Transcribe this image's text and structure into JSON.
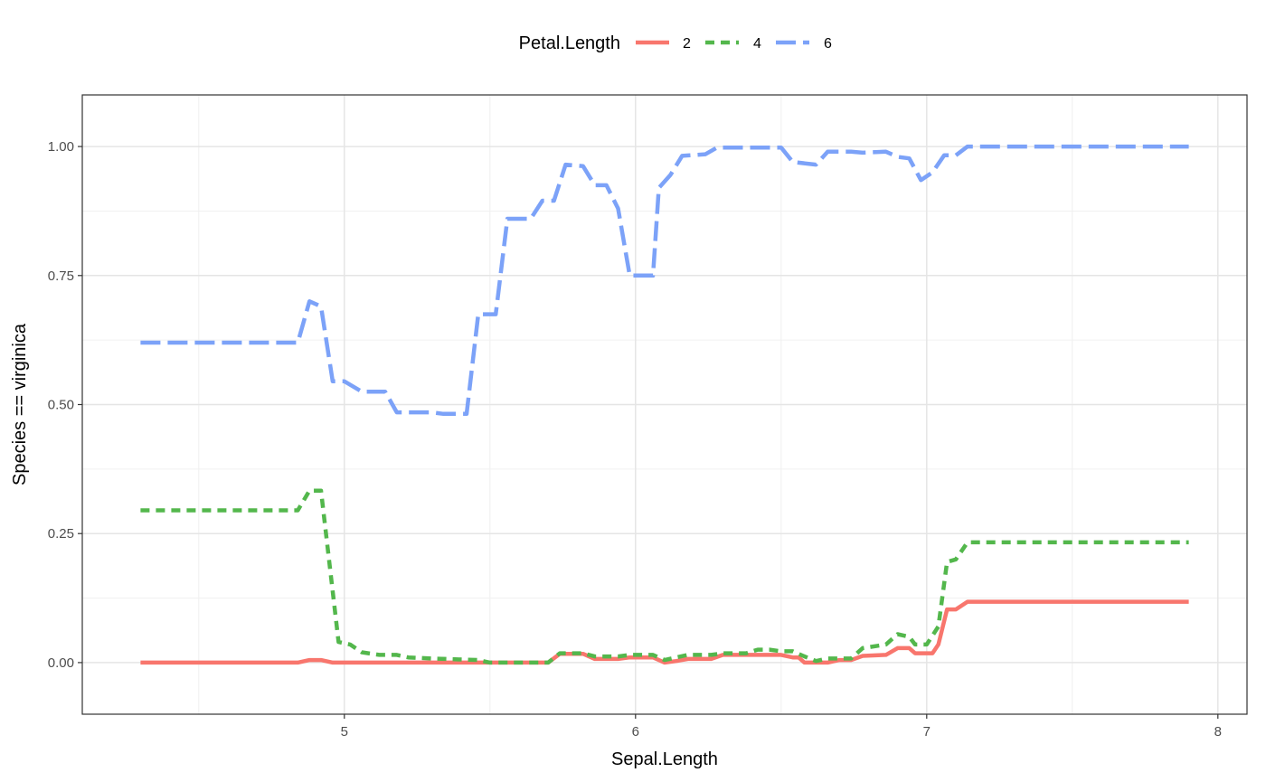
{
  "chart_data": {
    "type": "line",
    "title": "",
    "xlabel": "Sepal.Length",
    "ylabel": "Species == virginica",
    "xlim": [
      4.1,
      8.1
    ],
    "ylim": [
      -0.1,
      1.1
    ],
    "x_ticks": [
      5,
      6,
      7,
      8
    ],
    "x_tick_labels": [
      "5",
      "6",
      "7",
      "8"
    ],
    "y_ticks": [
      0,
      0.25,
      0.5,
      0.75,
      1.0
    ],
    "y_tick_labels": [
      "0.00",
      "0.25",
      "0.50",
      "0.75",
      "1.00"
    ],
    "grid": true,
    "legend": {
      "title": "Petal.Length",
      "placement": "top",
      "entries": [
        "2",
        "4",
        "6"
      ]
    },
    "series": [
      {
        "name": "2",
        "color": "#F8766D",
        "dash": "solid",
        "points": [
          [
            4.3,
            0.0
          ],
          [
            4.84,
            0.0
          ],
          [
            4.88,
            0.005
          ],
          [
            4.92,
            0.005
          ],
          [
            4.96,
            0.0
          ],
          [
            5.7,
            0.0
          ],
          [
            5.74,
            0.017
          ],
          [
            5.82,
            0.017
          ],
          [
            5.86,
            0.007
          ],
          [
            5.94,
            0.007
          ],
          [
            5.98,
            0.01
          ],
          [
            6.06,
            0.01
          ],
          [
            6.1,
            0.0
          ],
          [
            6.14,
            0.003
          ],
          [
            6.18,
            0.007
          ],
          [
            6.26,
            0.007
          ],
          [
            6.3,
            0.015
          ],
          [
            6.5,
            0.015
          ],
          [
            6.54,
            0.01
          ],
          [
            6.56,
            0.01
          ],
          [
            6.58,
            0.0
          ],
          [
            6.66,
            0.0
          ],
          [
            6.7,
            0.005
          ],
          [
            6.74,
            0.005
          ],
          [
            6.78,
            0.013
          ],
          [
            6.86,
            0.015
          ],
          [
            6.9,
            0.028
          ],
          [
            6.94,
            0.028
          ],
          [
            6.96,
            0.018
          ],
          [
            7.02,
            0.018
          ],
          [
            7.04,
            0.035
          ],
          [
            7.07,
            0.103
          ],
          [
            7.1,
            0.103
          ],
          [
            7.14,
            0.118
          ],
          [
            7.9,
            0.118
          ]
        ]
      },
      {
        "name": "4",
        "color": "#53B74C",
        "dash": "10,7",
        "points": [
          [
            4.3,
            0.295
          ],
          [
            4.84,
            0.295
          ],
          [
            4.88,
            0.333
          ],
          [
            4.92,
            0.333
          ],
          [
            4.98,
            0.04
          ],
          [
            5.02,
            0.035
          ],
          [
            5.06,
            0.02
          ],
          [
            5.12,
            0.015
          ],
          [
            5.18,
            0.015
          ],
          [
            5.22,
            0.01
          ],
          [
            5.3,
            0.008
          ],
          [
            5.46,
            0.005
          ],
          [
            5.5,
            0.0
          ],
          [
            5.7,
            0.0
          ],
          [
            5.74,
            0.018
          ],
          [
            5.82,
            0.018
          ],
          [
            5.86,
            0.012
          ],
          [
            5.94,
            0.012
          ],
          [
            5.98,
            0.015
          ],
          [
            6.06,
            0.015
          ],
          [
            6.1,
            0.005
          ],
          [
            6.14,
            0.01
          ],
          [
            6.18,
            0.015
          ],
          [
            6.26,
            0.015
          ],
          [
            6.3,
            0.018
          ],
          [
            6.38,
            0.018
          ],
          [
            6.42,
            0.025
          ],
          [
            6.46,
            0.025
          ],
          [
            6.5,
            0.022
          ],
          [
            6.54,
            0.022
          ],
          [
            6.58,
            0.012
          ],
          [
            6.62,
            0.003
          ],
          [
            6.66,
            0.008
          ],
          [
            6.74,
            0.008
          ],
          [
            6.78,
            0.028
          ],
          [
            6.86,
            0.035
          ],
          [
            6.9,
            0.055
          ],
          [
            6.94,
            0.05
          ],
          [
            6.96,
            0.035
          ],
          [
            7.0,
            0.035
          ],
          [
            7.04,
            0.07
          ],
          [
            7.07,
            0.195
          ],
          [
            7.1,
            0.2
          ],
          [
            7.14,
            0.233
          ],
          [
            7.9,
            0.233
          ]
        ]
      },
      {
        "name": "6",
        "color": "#7CA2F8",
        "dash": "22,8",
        "points": [
          [
            4.3,
            0.62
          ],
          [
            4.84,
            0.62
          ],
          [
            4.88,
            0.7
          ],
          [
            4.92,
            0.69
          ],
          [
            4.96,
            0.545
          ],
          [
            5.0,
            0.545
          ],
          [
            5.06,
            0.525
          ],
          [
            5.14,
            0.525
          ],
          [
            5.18,
            0.485
          ],
          [
            5.3,
            0.485
          ],
          [
            5.34,
            0.482
          ],
          [
            5.42,
            0.482
          ],
          [
            5.46,
            0.675
          ],
          [
            5.52,
            0.675
          ],
          [
            5.56,
            0.86
          ],
          [
            5.64,
            0.86
          ],
          [
            5.68,
            0.895
          ],
          [
            5.72,
            0.895
          ],
          [
            5.76,
            0.965
          ],
          [
            5.82,
            0.962
          ],
          [
            5.86,
            0.925
          ],
          [
            5.9,
            0.925
          ],
          [
            5.94,
            0.88
          ],
          [
            5.98,
            0.75
          ],
          [
            6.06,
            0.75
          ],
          [
            6.08,
            0.92
          ],
          [
            6.12,
            0.945
          ],
          [
            6.16,
            0.982
          ],
          [
            6.24,
            0.985
          ],
          [
            6.28,
            0.998
          ],
          [
            6.5,
            0.998
          ],
          [
            6.54,
            0.97
          ],
          [
            6.62,
            0.965
          ],
          [
            6.66,
            0.99
          ],
          [
            6.74,
            0.99
          ],
          [
            6.78,
            0.988
          ],
          [
            6.86,
            0.99
          ],
          [
            6.9,
            0.98
          ],
          [
            6.94,
            0.977
          ],
          [
            6.98,
            0.935
          ],
          [
            7.02,
            0.95
          ],
          [
            7.06,
            0.983
          ],
          [
            7.1,
            0.983
          ],
          [
            7.14,
            1.0
          ],
          [
            7.9,
            1.0
          ]
        ]
      }
    ]
  }
}
